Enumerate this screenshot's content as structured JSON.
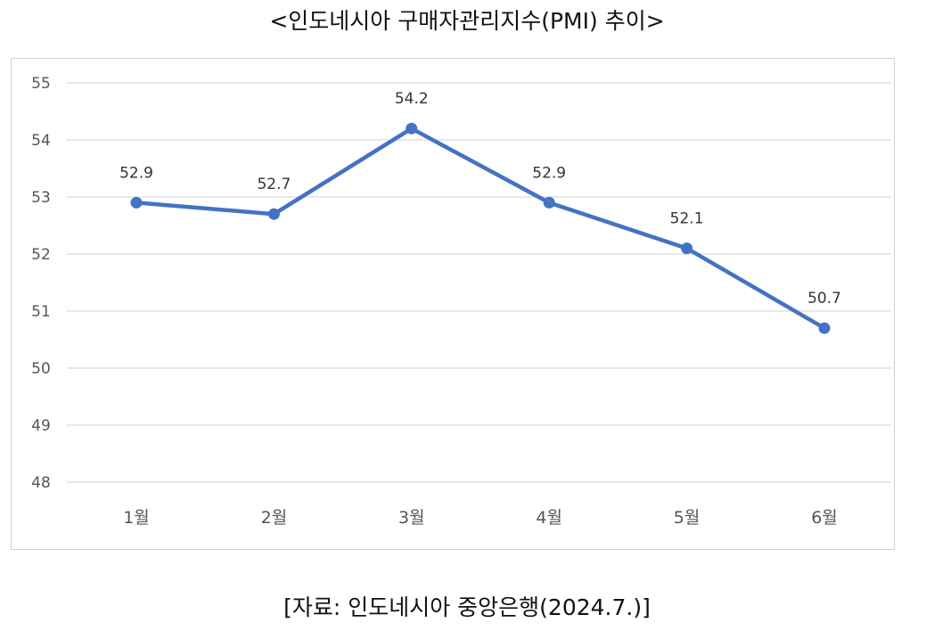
{
  "title": "<인도네시아 구매자관리지수(PMI) 추이>",
  "source": "[자료: 인도네시아 중앙은행(2024.7.)]",
  "chart_data": {
    "type": "line",
    "categories": [
      "1월",
      "2월",
      "3월",
      "4월",
      "5월",
      "6월"
    ],
    "series": [
      {
        "values": [
          52.9,
          52.7,
          54.2,
          52.9,
          52.1,
          50.7
        ],
        "color": "#4472C4"
      }
    ],
    "data_labels": [
      "52.9",
      "52.7",
      "54.2",
      "52.9",
      "52.1",
      "50.7"
    ],
    "y_ticks": [
      "48",
      "49",
      "50",
      "51",
      "52",
      "53",
      "54",
      "55"
    ],
    "ylim": [
      48,
      55
    ],
    "grid": true,
    "legend": "none",
    "gridline_color": "#D9D9D9"
  }
}
